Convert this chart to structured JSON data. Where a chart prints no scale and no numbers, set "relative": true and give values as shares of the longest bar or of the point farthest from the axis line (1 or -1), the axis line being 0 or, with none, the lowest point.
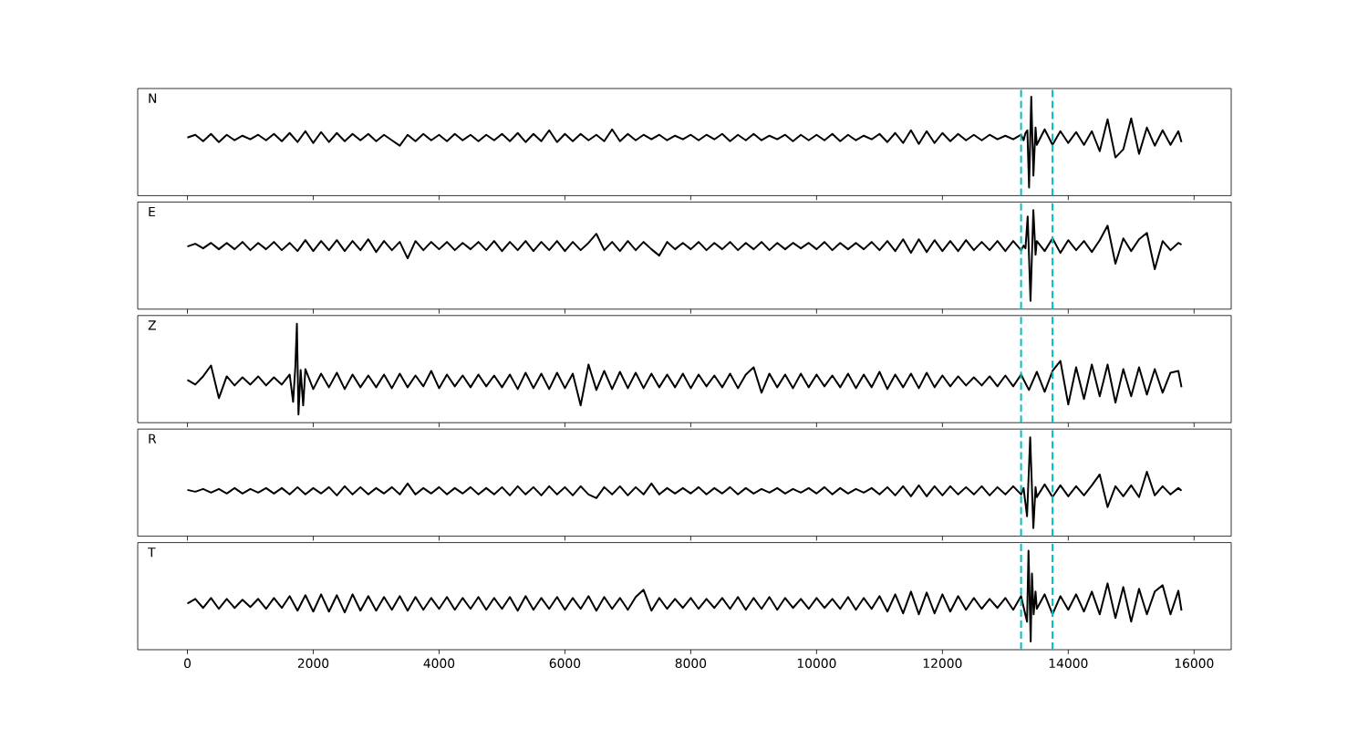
{
  "chart_data": [
    {
      "type": "line",
      "relative": true,
      "color": "#000000",
      "annotations": [
        "N"
      ],
      "xlim": [
        -790,
        16590
      ],
      "xticks": [
        0,
        2000,
        4000,
        6000,
        8000,
        10000,
        12000,
        14000,
        16000
      ],
      "tick_labels": false,
      "ref_lines": [
        {
          "axis": "x",
          "value": 13250,
          "color": "#00bfbf",
          "line_style": "dashed"
        },
        {
          "axis": "x",
          "value": 13750,
          "color": "#00bfbf",
          "line_style": "dashed"
        }
      ],
      "x": [
        0,
        125,
        250,
        375,
        500,
        625,
        750,
        875,
        1000,
        1125,
        1250,
        1375,
        1500,
        1625,
        1750,
        1875,
        2000,
        2125,
        2250,
        2375,
        2500,
        2625,
        2750,
        2875,
        3000,
        3125,
        3250,
        3375,
        3500,
        3625,
        3750,
        3875,
        4000,
        4125,
        4250,
        4375,
        4500,
        4625,
        4750,
        4875,
        5000,
        5125,
        5250,
        5375,
        5500,
        5625,
        5750,
        5875,
        6000,
        6125,
        6250,
        6375,
        6500,
        6625,
        6750,
        6875,
        7000,
        7125,
        7250,
        7375,
        7500,
        7625,
        7750,
        7875,
        8000,
        8125,
        8250,
        8375,
        8500,
        8625,
        8750,
        8875,
        9000,
        9125,
        9250,
        9375,
        9500,
        9625,
        9750,
        9875,
        10000,
        10125,
        10250,
        10375,
        10500,
        10625,
        10750,
        10875,
        11000,
        11125,
        11250,
        11375,
        11500,
        11625,
        11750,
        11875,
        12000,
        12125,
        12250,
        12375,
        12500,
        12625,
        12750,
        12875,
        13000,
        13125,
        13250,
        13290,
        13320,
        13350,
        13377,
        13412,
        13446,
        13480,
        13500,
        13625,
        13750,
        13875,
        14000,
        14125,
        14250,
        14375,
        14500,
        14625,
        14750,
        14875,
        15000,
        15125,
        15250,
        15375,
        15500,
        15625,
        15750,
        15800
      ],
      "values": [
        0.55,
        0.58,
        0.51,
        0.59,
        0.5,
        0.58,
        0.52,
        0.57,
        0.53,
        0.58,
        0.52,
        0.59,
        0.51,
        0.6,
        0.5,
        0.62,
        0.49,
        0.61,
        0.5,
        0.6,
        0.51,
        0.59,
        0.52,
        0.59,
        0.51,
        0.58,
        0.52,
        0.46,
        0.58,
        0.51,
        0.59,
        0.52,
        0.58,
        0.51,
        0.59,
        0.52,
        0.58,
        0.51,
        0.58,
        0.52,
        0.59,
        0.51,
        0.6,
        0.5,
        0.59,
        0.51,
        0.63,
        0.5,
        0.59,
        0.51,
        0.59,
        0.52,
        0.58,
        0.51,
        0.64,
        0.51,
        0.59,
        0.52,
        0.58,
        0.53,
        0.58,
        0.52,
        0.57,
        0.53,
        0.58,
        0.52,
        0.58,
        0.53,
        0.59,
        0.51,
        0.58,
        0.52,
        0.59,
        0.52,
        0.57,
        0.53,
        0.58,
        0.51,
        0.58,
        0.52,
        0.58,
        0.52,
        0.59,
        0.51,
        0.58,
        0.52,
        0.57,
        0.53,
        0.59,
        0.5,
        0.6,
        0.49,
        0.63,
        0.48,
        0.62,
        0.49,
        0.6,
        0.51,
        0.59,
        0.52,
        0.58,
        0.52,
        0.58,
        0.53,
        0.57,
        0.53,
        0.58,
        0.52,
        0.6,
        0.63,
        0.0,
        1.0,
        0.13,
        0.66,
        0.47,
        0.64,
        0.47,
        0.62,
        0.49,
        0.61,
        0.47,
        0.62,
        0.4,
        0.75,
        0.33,
        0.42,
        0.76,
        0.37,
        0.66,
        0.46,
        0.63,
        0.47,
        0.62,
        0.5
      ]
    },
    {
      "type": "line",
      "relative": true,
      "color": "#000000",
      "annotations": [
        "E"
      ],
      "xlim": [
        -790,
        16590
      ],
      "xticks": [
        0,
        2000,
        4000,
        6000,
        8000,
        10000,
        12000,
        14000,
        16000
      ],
      "tick_labels": false,
      "ref_lines": [
        {
          "axis": "x",
          "value": 13250,
          "color": "#00bfbf",
          "line_style": "dashed"
        },
        {
          "axis": "x",
          "value": 13750,
          "color": "#00bfbf",
          "line_style": "dashed"
        }
      ],
      "x": [
        0,
        125,
        250,
        375,
        500,
        625,
        750,
        875,
        1000,
        1125,
        1250,
        1375,
        1500,
        1625,
        1750,
        1875,
        2000,
        2125,
        2250,
        2375,
        2500,
        2625,
        2750,
        2875,
        3000,
        3125,
        3250,
        3375,
        3500,
        3625,
        3750,
        3875,
        4000,
        4125,
        4250,
        4375,
        4500,
        4625,
        4750,
        4875,
        5000,
        5125,
        5250,
        5375,
        5500,
        5625,
        5750,
        5875,
        6000,
        6125,
        6250,
        6375,
        6500,
        6625,
        6750,
        6875,
        7000,
        7125,
        7250,
        7375,
        7500,
        7625,
        7750,
        7875,
        8000,
        8125,
        8250,
        8375,
        8500,
        8625,
        8750,
        8875,
        9000,
        9125,
        9250,
        9375,
        9500,
        9625,
        9750,
        9875,
        10000,
        10125,
        10250,
        10375,
        10500,
        10625,
        10750,
        10875,
        11000,
        11125,
        11250,
        11375,
        11500,
        11625,
        11750,
        11875,
        12000,
        12125,
        12250,
        12375,
        12500,
        12625,
        12750,
        12875,
        13000,
        13125,
        13250,
        13290,
        13320,
        13355,
        13400,
        13445,
        13480,
        13500,
        13625,
        13750,
        13875,
        14000,
        14125,
        14250,
        14375,
        14500,
        14625,
        14750,
        14875,
        15000,
        15125,
        15250,
        15375,
        15500,
        15625,
        15750,
        15800
      ],
      "values": [
        0.6,
        0.63,
        0.58,
        0.64,
        0.57,
        0.64,
        0.57,
        0.65,
        0.56,
        0.64,
        0.57,
        0.65,
        0.56,
        0.64,
        0.55,
        0.67,
        0.55,
        0.66,
        0.56,
        0.67,
        0.55,
        0.66,
        0.56,
        0.68,
        0.54,
        0.66,
        0.56,
        0.65,
        0.47,
        0.66,
        0.56,
        0.65,
        0.57,
        0.65,
        0.56,
        0.64,
        0.57,
        0.65,
        0.56,
        0.66,
        0.55,
        0.65,
        0.56,
        0.66,
        0.55,
        0.65,
        0.56,
        0.66,
        0.55,
        0.65,
        0.56,
        0.64,
        0.74,
        0.56,
        0.65,
        0.55,
        0.66,
        0.56,
        0.65,
        0.57,
        0.5,
        0.65,
        0.57,
        0.64,
        0.57,
        0.65,
        0.56,
        0.64,
        0.57,
        0.65,
        0.56,
        0.64,
        0.57,
        0.65,
        0.56,
        0.64,
        0.57,
        0.64,
        0.58,
        0.64,
        0.57,
        0.65,
        0.56,
        0.64,
        0.57,
        0.64,
        0.57,
        0.65,
        0.56,
        0.66,
        0.55,
        0.68,
        0.53,
        0.68,
        0.54,
        0.67,
        0.55,
        0.66,
        0.55,
        0.67,
        0.56,
        0.65,
        0.56,
        0.66,
        0.55,
        0.66,
        0.56,
        0.61,
        0.58,
        0.93,
        0.0,
        1.0,
        0.51,
        0.66,
        0.55,
        0.69,
        0.53,
        0.67,
        0.56,
        0.66,
        0.54,
        0.67,
        0.83,
        0.41,
        0.69,
        0.55,
        0.68,
        0.75,
        0.35,
        0.66,
        0.56,
        0.64,
        0.62
      ]
    },
    {
      "type": "line",
      "relative": true,
      "color": "#000000",
      "annotations": [
        "Z"
      ],
      "xlim": [
        -790,
        16590
      ],
      "xticks": [
        0,
        2000,
        4000,
        6000,
        8000,
        10000,
        12000,
        14000,
        16000
      ],
      "tick_labels": false,
      "ref_lines": [
        {
          "axis": "x",
          "value": 13250,
          "color": "#00bfbf",
          "line_style": "dashed"
        },
        {
          "axis": "x",
          "value": 13750,
          "color": "#00bfbf",
          "line_style": "dashed"
        }
      ],
      "x": [
        0,
        125,
        250,
        375,
        500,
        625,
        750,
        875,
        1000,
        1125,
        1250,
        1375,
        1500,
        1625,
        1680,
        1715,
        1740,
        1765,
        1800,
        1840,
        1875,
        2000,
        2125,
        2250,
        2375,
        2500,
        2625,
        2750,
        2875,
        3000,
        3125,
        3250,
        3375,
        3500,
        3625,
        3750,
        3875,
        4000,
        4125,
        4250,
        4375,
        4500,
        4625,
        4750,
        4875,
        5000,
        5125,
        5250,
        5375,
        5500,
        5625,
        5750,
        5875,
        6000,
        6125,
        6250,
        6375,
        6500,
        6625,
        6750,
        6875,
        7000,
        7125,
        7250,
        7375,
        7500,
        7625,
        7750,
        7875,
        8000,
        8125,
        8250,
        8375,
        8500,
        8625,
        8750,
        8875,
        9000,
        9125,
        9250,
        9375,
        9500,
        9625,
        9750,
        9875,
        10000,
        10125,
        10250,
        10375,
        10500,
        10625,
        10750,
        10875,
        11000,
        11125,
        11250,
        11375,
        11500,
        11625,
        11750,
        11875,
        12000,
        12125,
        12250,
        12375,
        12500,
        12625,
        12750,
        12875,
        13000,
        13125,
        13250,
        13375,
        13500,
        13625,
        13750,
        13875,
        14000,
        14125,
        14250,
        14375,
        14500,
        14625,
        14750,
        14875,
        15000,
        15125,
        15250,
        15375,
        15500,
        15625,
        15750,
        15800
      ],
      "values": [
        0.38,
        0.33,
        0.42,
        0.54,
        0.18,
        0.42,
        0.32,
        0.41,
        0.33,
        0.42,
        0.32,
        0.41,
        0.33,
        0.44,
        0.14,
        0.52,
        1.0,
        0.0,
        0.49,
        0.1,
        0.5,
        0.28,
        0.45,
        0.3,
        0.46,
        0.28,
        0.44,
        0.3,
        0.43,
        0.3,
        0.44,
        0.29,
        0.45,
        0.3,
        0.43,
        0.31,
        0.48,
        0.29,
        0.44,
        0.31,
        0.43,
        0.3,
        0.44,
        0.31,
        0.43,
        0.3,
        0.44,
        0.28,
        0.46,
        0.29,
        0.45,
        0.28,
        0.46,
        0.29,
        0.45,
        0.1,
        0.55,
        0.27,
        0.48,
        0.28,
        0.47,
        0.29,
        0.46,
        0.29,
        0.45,
        0.3,
        0.44,
        0.3,
        0.45,
        0.29,
        0.44,
        0.31,
        0.43,
        0.3,
        0.45,
        0.29,
        0.44,
        0.52,
        0.24,
        0.45,
        0.3,
        0.44,
        0.29,
        0.45,
        0.3,
        0.44,
        0.31,
        0.43,
        0.3,
        0.45,
        0.29,
        0.44,
        0.3,
        0.47,
        0.28,
        0.44,
        0.3,
        0.45,
        0.29,
        0.46,
        0.3,
        0.43,
        0.31,
        0.42,
        0.32,
        0.41,
        0.32,
        0.42,
        0.31,
        0.43,
        0.31,
        0.44,
        0.27,
        0.47,
        0.25,
        0.48,
        0.59,
        0.11,
        0.52,
        0.17,
        0.55,
        0.2,
        0.55,
        0.13,
        0.5,
        0.2,
        0.52,
        0.22,
        0.5,
        0.24,
        0.46,
        0.48,
        0.3
      ]
    },
    {
      "type": "line",
      "relative": true,
      "color": "#000000",
      "annotations": [
        "R"
      ],
      "xlim": [
        -790,
        16590
      ],
      "xticks": [
        0,
        2000,
        4000,
        6000,
        8000,
        10000,
        12000,
        14000,
        16000
      ],
      "tick_labels": false,
      "ref_lines": [
        {
          "axis": "x",
          "value": 13250,
          "color": "#00bfbf",
          "line_style": "dashed"
        },
        {
          "axis": "x",
          "value": 13750,
          "color": "#00bfbf",
          "line_style": "dashed"
        }
      ],
      "x": [
        0,
        125,
        250,
        375,
        500,
        625,
        750,
        875,
        1000,
        1125,
        1250,
        1375,
        1500,
        1625,
        1750,
        1875,
        2000,
        2125,
        2250,
        2375,
        2500,
        2625,
        2750,
        2875,
        3000,
        3125,
        3250,
        3375,
        3500,
        3625,
        3750,
        3875,
        4000,
        4125,
        4250,
        4375,
        4500,
        4625,
        4750,
        4875,
        5000,
        5125,
        5250,
        5375,
        5500,
        5625,
        5750,
        5875,
        6000,
        6125,
        6250,
        6375,
        6500,
        6625,
        6750,
        6875,
        7000,
        7125,
        7250,
        7375,
        7500,
        7625,
        7750,
        7875,
        8000,
        8125,
        8250,
        8375,
        8500,
        8625,
        8750,
        8875,
        9000,
        9125,
        9250,
        9375,
        9500,
        9625,
        9750,
        9875,
        10000,
        10125,
        10250,
        10375,
        10500,
        10625,
        10750,
        10875,
        11000,
        11125,
        11250,
        11375,
        11500,
        11625,
        11750,
        11875,
        12000,
        12125,
        12250,
        12375,
        12500,
        12625,
        12750,
        12875,
        13000,
        13125,
        13250,
        13290,
        13345,
        13395,
        13445,
        13480,
        13500,
        13625,
        13750,
        13875,
        14000,
        14125,
        14250,
        14375,
        14500,
        14625,
        14750,
        14875,
        15000,
        15125,
        15250,
        15375,
        15500,
        15625,
        15750,
        15800
      ],
      "values": [
        0.42,
        0.4,
        0.43,
        0.39,
        0.43,
        0.38,
        0.44,
        0.38,
        0.43,
        0.39,
        0.44,
        0.38,
        0.44,
        0.37,
        0.45,
        0.37,
        0.44,
        0.38,
        0.45,
        0.36,
        0.46,
        0.37,
        0.45,
        0.37,
        0.44,
        0.38,
        0.45,
        0.37,
        0.49,
        0.37,
        0.44,
        0.38,
        0.45,
        0.37,
        0.44,
        0.38,
        0.45,
        0.37,
        0.44,
        0.37,
        0.45,
        0.36,
        0.46,
        0.37,
        0.45,
        0.36,
        0.46,
        0.37,
        0.45,
        0.36,
        0.46,
        0.37,
        0.33,
        0.45,
        0.37,
        0.46,
        0.36,
        0.45,
        0.37,
        0.49,
        0.37,
        0.44,
        0.38,
        0.44,
        0.38,
        0.45,
        0.37,
        0.44,
        0.38,
        0.45,
        0.37,
        0.44,
        0.38,
        0.43,
        0.39,
        0.44,
        0.38,
        0.43,
        0.39,
        0.44,
        0.38,
        0.45,
        0.37,
        0.44,
        0.38,
        0.43,
        0.39,
        0.44,
        0.37,
        0.45,
        0.36,
        0.46,
        0.35,
        0.47,
        0.35,
        0.46,
        0.36,
        0.46,
        0.37,
        0.45,
        0.37,
        0.46,
        0.36,
        0.45,
        0.37,
        0.46,
        0.37,
        0.44,
        0.13,
        1.0,
        0.0,
        0.45,
        0.34,
        0.48,
        0.34,
        0.47,
        0.35,
        0.46,
        0.36,
        0.47,
        0.59,
        0.23,
        0.46,
        0.35,
        0.47,
        0.34,
        0.62,
        0.36,
        0.46,
        0.37,
        0.44,
        0.41
      ]
    },
    {
      "type": "line",
      "relative": true,
      "color": "#000000",
      "annotations": [
        "T"
      ],
      "xlim": [
        -790,
        16590
      ],
      "xticks": [
        0,
        2000,
        4000,
        6000,
        8000,
        10000,
        12000,
        14000,
        16000
      ],
      "tick_labels": "x",
      "ref_lines": [
        {
          "axis": "x",
          "value": 13250,
          "color": "#00bfbf",
          "line_style": "dashed"
        },
        {
          "axis": "x",
          "value": 13750,
          "color": "#00bfbf",
          "line_style": "dashed"
        }
      ],
      "x": [
        0,
        125,
        250,
        375,
        500,
        625,
        750,
        875,
        1000,
        1125,
        1250,
        1375,
        1500,
        1625,
        1750,
        1875,
        2000,
        2125,
        2250,
        2375,
        2500,
        2625,
        2750,
        2875,
        3000,
        3125,
        3250,
        3375,
        3500,
        3625,
        3750,
        3875,
        4000,
        4125,
        4250,
        4375,
        4500,
        4625,
        4750,
        4875,
        5000,
        5125,
        5250,
        5375,
        5500,
        5625,
        5750,
        5875,
        6000,
        6125,
        6250,
        6375,
        6500,
        6625,
        6750,
        6875,
        7000,
        7125,
        7250,
        7375,
        7500,
        7625,
        7750,
        7875,
        8000,
        8125,
        8250,
        8375,
        8500,
        8625,
        8750,
        8875,
        9000,
        9125,
        9250,
        9375,
        9500,
        9625,
        9750,
        9875,
        10000,
        10125,
        10250,
        10375,
        10500,
        10625,
        10750,
        10875,
        11000,
        11125,
        11250,
        11375,
        11500,
        11625,
        11750,
        11875,
        12000,
        12125,
        12250,
        12375,
        12500,
        12625,
        12750,
        12875,
        13000,
        13125,
        13250,
        13290,
        13345,
        13368,
        13403,
        13423,
        13450,
        13480,
        13500,
        13625,
        13750,
        13875,
        14000,
        14125,
        14250,
        14375,
        14500,
        14625,
        14750,
        14875,
        15000,
        15125,
        15250,
        15375,
        15500,
        15625,
        15750,
        15800
      ],
      "values": [
        0.42,
        0.47,
        0.37,
        0.48,
        0.36,
        0.47,
        0.37,
        0.46,
        0.38,
        0.47,
        0.36,
        0.48,
        0.37,
        0.5,
        0.34,
        0.51,
        0.33,
        0.52,
        0.33,
        0.51,
        0.32,
        0.52,
        0.34,
        0.5,
        0.34,
        0.49,
        0.35,
        0.5,
        0.34,
        0.49,
        0.35,
        0.48,
        0.36,
        0.49,
        0.35,
        0.48,
        0.36,
        0.49,
        0.35,
        0.48,
        0.36,
        0.49,
        0.34,
        0.5,
        0.35,
        0.48,
        0.36,
        0.49,
        0.35,
        0.48,
        0.36,
        0.5,
        0.34,
        0.49,
        0.36,
        0.48,
        0.35,
        0.49,
        0.57,
        0.34,
        0.48,
        0.36,
        0.47,
        0.37,
        0.48,
        0.36,
        0.47,
        0.37,
        0.48,
        0.36,
        0.49,
        0.35,
        0.48,
        0.36,
        0.49,
        0.35,
        0.48,
        0.37,
        0.47,
        0.36,
        0.48,
        0.37,
        0.47,
        0.36,
        0.49,
        0.35,
        0.48,
        0.36,
        0.5,
        0.33,
        0.52,
        0.31,
        0.55,
        0.3,
        0.54,
        0.31,
        0.52,
        0.33,
        0.5,
        0.35,
        0.48,
        0.36,
        0.47,
        0.37,
        0.48,
        0.35,
        0.5,
        0.38,
        0.22,
        1.0,
        0.0,
        0.75,
        0.3,
        0.55,
        0.36,
        0.52,
        0.3,
        0.5,
        0.35,
        0.52,
        0.33,
        0.55,
        0.3,
        0.64,
        0.26,
        0.6,
        0.22,
        0.58,
        0.3,
        0.55,
        0.62,
        0.3,
        0.56,
        0.34
      ]
    }
  ]
}
